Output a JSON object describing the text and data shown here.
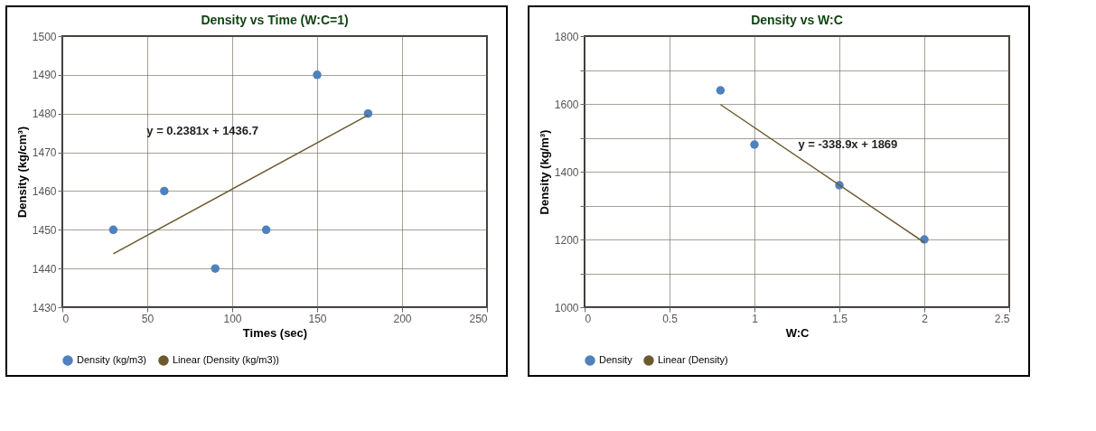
{
  "chart_data": [
    {
      "type": "scatter",
      "title": "Density vs Time (W:C=1)",
      "xlabel": "Times (sec)",
      "ylabel": "Density (kg/cm³)",
      "x": [
        30,
        60,
        90,
        120,
        150,
        180
      ],
      "series": [
        {
          "name": "Density (kg/m3)",
          "color": "#4f81bd",
          "values": [
            1450,
            1460,
            1440,
            1450,
            1490,
            1480
          ]
        },
        {
          "name": "Linear (Density (kg/m3))",
          "type": "line",
          "color": "#6b5a2e",
          "x": [
            30,
            180
          ],
          "values": [
            1443.8,
            1479.6
          ]
        }
      ],
      "xlim": [
        0,
        250
      ],
      "xticks": [
        0,
        50,
        100,
        150,
        200,
        250
      ],
      "ylim": [
        1430,
        1500
      ],
      "yticks": [
        1430,
        1440,
        1450,
        1460,
        1470,
        1480,
        1490,
        1500
      ],
      "annotations": [
        "y = 0.2381x + 1436.7"
      ],
      "grid": true,
      "legend": "bottom",
      "line_style": "solid"
    },
    {
      "type": "scatter",
      "title": "Density  vs W:C",
      "xlabel": "W:C",
      "ylabel": "Density (kg/m³)",
      "x": [
        0.8,
        1,
        1.5,
        2
      ],
      "series": [
        {
          "name": "Density",
          "color": "#4f81bd",
          "values": [
            1640,
            1480,
            1360,
            1200
          ]
        },
        {
          "name": "Linear (Density)",
          "type": "line",
          "color": "#6b5a2e",
          "x": [
            0.8,
            2
          ],
          "values": [
            1598,
            1191
          ]
        }
      ],
      "xlim": [
        0,
        2.5
      ],
      "xticks": [
        0,
        0.5,
        1,
        1.5,
        2,
        2.5
      ],
      "ylim": [
        1000,
        1800
      ],
      "yticks": [
        1000,
        {
          "value": 1100,
          "label": null
        },
        1200,
        {
          "value": 1300,
          "label": null
        },
        1400,
        {
          "value": 1500,
          "label": null
        },
        1600,
        {
          "value": 1700,
          "label": null
        },
        1800
      ],
      "annotations": [
        "y = -338.9x + 1869"
      ],
      "grid": true,
      "legend": "bottom",
      "line_style": "solid"
    }
  ]
}
